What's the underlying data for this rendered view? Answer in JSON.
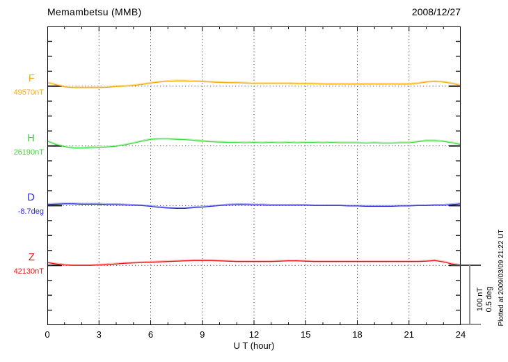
{
  "header": {
    "title": "Memambetsu (MMB)",
    "date": "2008/12/27"
  },
  "axes": {
    "x_label": "U T (hour)",
    "x_tick_labels": [
      "0",
      "3",
      "6",
      "9",
      "12",
      "15",
      "18",
      "21",
      "24"
    ],
    "x_range_hours": [
      0,
      24
    ],
    "x_minor_step_hours": 1,
    "x_grid_hours": [
      3,
      6,
      9,
      12,
      15,
      18,
      21
    ],
    "y_minor_divisions": 20,
    "grid_style": "dotted"
  },
  "scale_bar": {
    "line1": "100 nT",
    "line2": "0.5 deg",
    "span_nT": 100,
    "span_deg": 0.5
  },
  "footer_note": "Plotted at 2009/03/09 21:22 UT",
  "chart_data": {
    "type": "line",
    "title": "Memambetsu (MMB) magnetogram, 2008/12/27",
    "xlabel": "U T (hour)",
    "x_unit": "hour (UT)",
    "x_step_hours": 0.5,
    "x": [
      0,
      0.5,
      1,
      1.5,
      2,
      2.5,
      3,
      3.5,
      4,
      4.5,
      5,
      5.5,
      6,
      6.5,
      7,
      7.5,
      8,
      8.5,
      9,
      9.5,
      10,
      10.5,
      11,
      11.5,
      12,
      12.5,
      13,
      13.5,
      14,
      14.5,
      15,
      15.5,
      16,
      16.5,
      17,
      17.5,
      18,
      18.5,
      19,
      19.5,
      20,
      20.5,
      21,
      21.5,
      22,
      22.5,
      23,
      23.5,
      24
    ],
    "y_scale": {
      "nT_per_division": 25,
      "deg_per_division": 0.125
    },
    "legend_position": "left",
    "series": [
      {
        "label": "F",
        "baseline_label": "49570nT",
        "baseline_value": 49570,
        "unit": "nT",
        "baseline_division": 4,
        "color": "#FFAA00",
        "color_light": "#FFD98C",
        "offsets": [
          5.8,
          2.3,
          -1.2,
          -2.3,
          -2.3,
          -2.3,
          -2.3,
          -1.7,
          -0.6,
          0,
          1.2,
          2.9,
          5.2,
          7,
          8.1,
          8.7,
          8.7,
          8.1,
          7.6,
          7,
          6.4,
          5.8,
          5.8,
          5.2,
          4.7,
          4.7,
          4.7,
          4.7,
          4.7,
          4.1,
          4.1,
          4.1,
          3.5,
          3.5,
          3.5,
          3.5,
          3.5,
          3.5,
          3.5,
          3.5,
          3.5,
          3.5,
          3.5,
          4.7,
          7,
          7.6,
          7,
          4.7,
          1.2
        ]
      },
      {
        "label": "H",
        "baseline_label": "26190nT",
        "baseline_value": 26190,
        "unit": "nT",
        "baseline_division": 8,
        "color": "#33DD33",
        "color_light": "#AAEFAA",
        "offsets": [
          8.1,
          2.3,
          -1.2,
          -3.5,
          -3.5,
          -2.9,
          -2.3,
          -1.7,
          -0.6,
          1.7,
          4.7,
          8.1,
          11,
          11.6,
          11.6,
          11,
          10.5,
          9.3,
          8.1,
          7,
          6.4,
          5.8,
          5.8,
          5.2,
          5.8,
          5.2,
          5.8,
          5.2,
          5.8,
          5.2,
          5.8,
          5.8,
          5.2,
          5.8,
          5.2,
          5.2,
          5.2,
          4.7,
          5.2,
          4.7,
          4.7,
          5.2,
          5.2,
          7,
          8.7,
          8.7,
          7.6,
          5.2,
          2.3
        ]
      },
      {
        "label": "D",
        "baseline_label": "-8.7deg",
        "baseline_value": -8.7,
        "unit": "deg",
        "baseline_division": 12,
        "color": "#2929DD",
        "color_light": "#9D9DE8",
        "offsets": [
          0.009,
          0.012,
          0.015,
          0.015,
          0.012,
          0.012,
          0.012,
          0.009,
          0.009,
          0.006,
          0.003,
          0,
          -0.006,
          -0.015,
          -0.02,
          -0.023,
          -0.023,
          -0.017,
          -0.012,
          -0.006,
          0,
          0.006,
          0.009,
          0.009,
          0.006,
          0.006,
          0.003,
          0.003,
          0.003,
          0.003,
          0.003,
          0,
          0,
          0,
          0,
          -0.003,
          -0.003,
          -0.006,
          -0.006,
          -0.006,
          -0.006,
          -0.003,
          -0.003,
          0,
          0,
          0.003,
          0.003,
          0.009,
          0.015
        ]
      },
      {
        "label": "Z",
        "baseline_label": "42130nT",
        "baseline_value": 42130,
        "unit": "nT",
        "baseline_division": 16,
        "color": "#EE1111",
        "color_light": "#FFA6A6",
        "offsets": [
          4.7,
          2.3,
          0.6,
          0,
          0,
          0,
          0.6,
          1.2,
          2.3,
          3.5,
          4.1,
          4.7,
          5.2,
          5.8,
          6.4,
          7,
          7.6,
          8.1,
          8.1,
          8.1,
          7.6,
          7,
          6.4,
          6.4,
          6.4,
          6.4,
          6.4,
          7,
          7.6,
          7.6,
          7,
          6.4,
          6.4,
          6.4,
          6.4,
          6.4,
          6.4,
          6.4,
          6.4,
          6.4,
          6.4,
          6.4,
          6.4,
          6.4,
          7,
          8.1,
          5.8,
          2.3,
          0
        ]
      }
    ]
  }
}
